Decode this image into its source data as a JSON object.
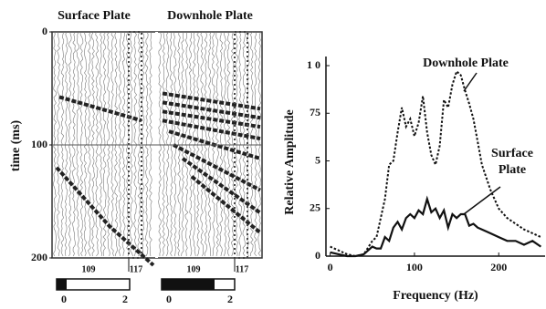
{
  "chart_data": [
    {
      "type": "seismic",
      "ylabel": "time (ms)",
      "ylim": [
        0,
        200
      ],
      "yticks": [
        0,
        100,
        200
      ],
      "panels": [
        {
          "title": "Surface Plate",
          "trace_labels": [
            "109",
            "117"
          ],
          "colorbar_ticks": [
            0,
            2
          ]
        },
        {
          "title": "Downhole Plate",
          "trace_labels": [
            "109",
            "117"
          ],
          "colorbar_ticks": [
            0,
            2
          ]
        }
      ]
    },
    {
      "type": "line",
      "xlabel": "Frequency (Hz)",
      "ylabel": "Relative Amplitude",
      "xlim": [
        -5,
        255
      ],
      "xticks": [
        0,
        100,
        200
      ],
      "ylim": [
        0,
        100
      ],
      "yticks": [
        0,
        25,
        {
          "value": 50,
          "label": "5"
        },
        75,
        {
          "value": 100,
          "label": "1 0"
        }
      ],
      "x": [
        0,
        10,
        20,
        30,
        40,
        50,
        55,
        60,
        65,
        70,
        75,
        80,
        85,
        90,
        95,
        100,
        105,
        110,
        115,
        120,
        125,
        130,
        135,
        140,
        145,
        150,
        155,
        160,
        165,
        170,
        175,
        180,
        190,
        200,
        210,
        220,
        230,
        240,
        250
      ],
      "series": [
        {
          "name": "Downhole Plate",
          "color": "#111111",
          "style": "dotted",
          "values": [
            5,
            3,
            1,
            0,
            1,
            8,
            10,
            20,
            30,
            48,
            50,
            65,
            78,
            68,
            72,
            63,
            70,
            84,
            65,
            53,
            48,
            58,
            82,
            78,
            90,
            97,
            95,
            87,
            80,
            72,
            60,
            48,
            35,
            25,
            20,
            17,
            14,
            12,
            10
          ]
        },
        {
          "name": "Surface Plate",
          "color": "#111111",
          "style": "solid",
          "values": [
            2,
            1,
            0,
            0,
            1,
            5,
            4,
            4,
            10,
            8,
            15,
            18,
            14,
            20,
            22,
            20,
            24,
            22,
            30,
            23,
            25,
            20,
            24,
            15,
            22,
            20,
            22,
            22,
            16,
            17,
            15,
            14,
            12,
            10,
            8,
            8,
            6,
            8,
            5
          ]
        }
      ]
    }
  ]
}
